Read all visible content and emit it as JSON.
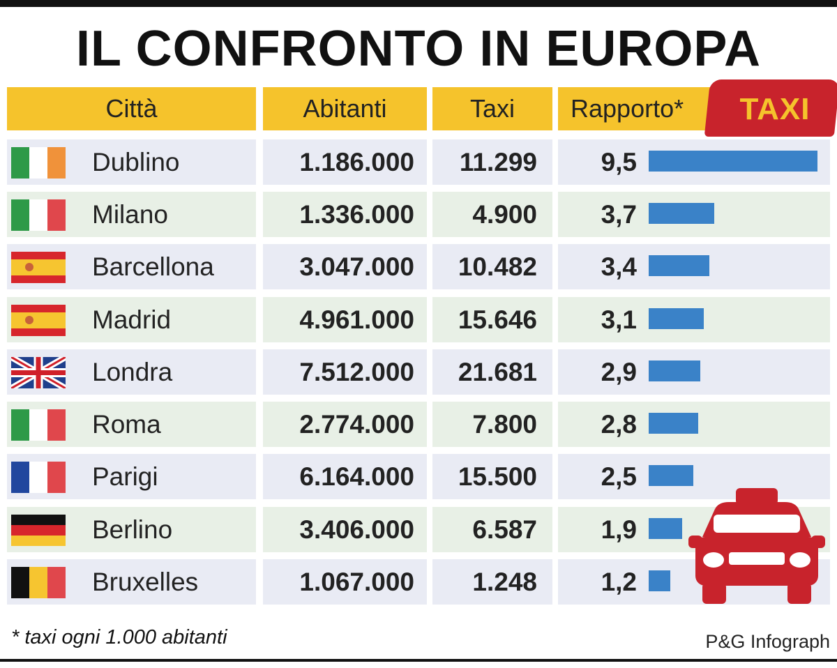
{
  "title": "IL CONFRONTO IN EUROPA",
  "headers": {
    "city": "Città",
    "inhabitants": "Abitanti",
    "taxi": "Taxi",
    "ratio": "Rapporto*"
  },
  "badge": "TAXI",
  "footnote": "* taxi ogni 1.000 abitanti",
  "credit": "P&G Infograph",
  "colors": {
    "header": "#f5c32c",
    "bar": "#3a82c8",
    "badge": "#c8232c",
    "car": "#c8232c"
  },
  "chart_data": {
    "type": "bar",
    "orientation": "horizontal",
    "title": "IL CONFRONTO IN EUROPA",
    "categories": [
      "Dublino",
      "Milano",
      "Barcellona",
      "Madrid",
      "Londra",
      "Roma",
      "Parigi",
      "Berlino",
      "Bruxelles"
    ],
    "values": [
      9.5,
      3.7,
      3.4,
      3.1,
      2.9,
      2.8,
      2.5,
      1.9,
      1.2
    ],
    "xlim": [
      0,
      9.5
    ]
  },
  "rows": [
    {
      "flag": "ireland-flag",
      "city": "Dublino",
      "inhabitants": "1.186.000",
      "taxi": "11.299",
      "ratio": "9,5"
    },
    {
      "flag": "italy-flag",
      "city": "Milano",
      "inhabitants": "1.336.000",
      "taxi": "4.900",
      "ratio": "3,7"
    },
    {
      "flag": "spain-flag",
      "city": "Barcellona",
      "inhabitants": "3.047.000",
      "taxi": "10.482",
      "ratio": "3,4"
    },
    {
      "flag": "spain-flag",
      "city": "Madrid",
      "inhabitants": "4.961.000",
      "taxi": "15.646",
      "ratio": "3,1"
    },
    {
      "flag": "uk-flag",
      "city": "Londra",
      "inhabitants": "7.512.000",
      "taxi": "21.681",
      "ratio": "2,9"
    },
    {
      "flag": "italy-flag",
      "city": "Roma",
      "inhabitants": "2.774.000",
      "taxi": "7.800",
      "ratio": "2,8"
    },
    {
      "flag": "france-flag",
      "city": "Parigi",
      "inhabitants": "6.164.000",
      "taxi": "15.500",
      "ratio": "2,5"
    },
    {
      "flag": "germany-flag",
      "city": "Berlino",
      "inhabitants": "3.406.000",
      "taxi": "6.587",
      "ratio": "1,9"
    },
    {
      "flag": "belgium-flag",
      "city": "Bruxelles",
      "inhabitants": "1.067.000",
      "taxi": "1.248",
      "ratio": "1,2"
    }
  ]
}
